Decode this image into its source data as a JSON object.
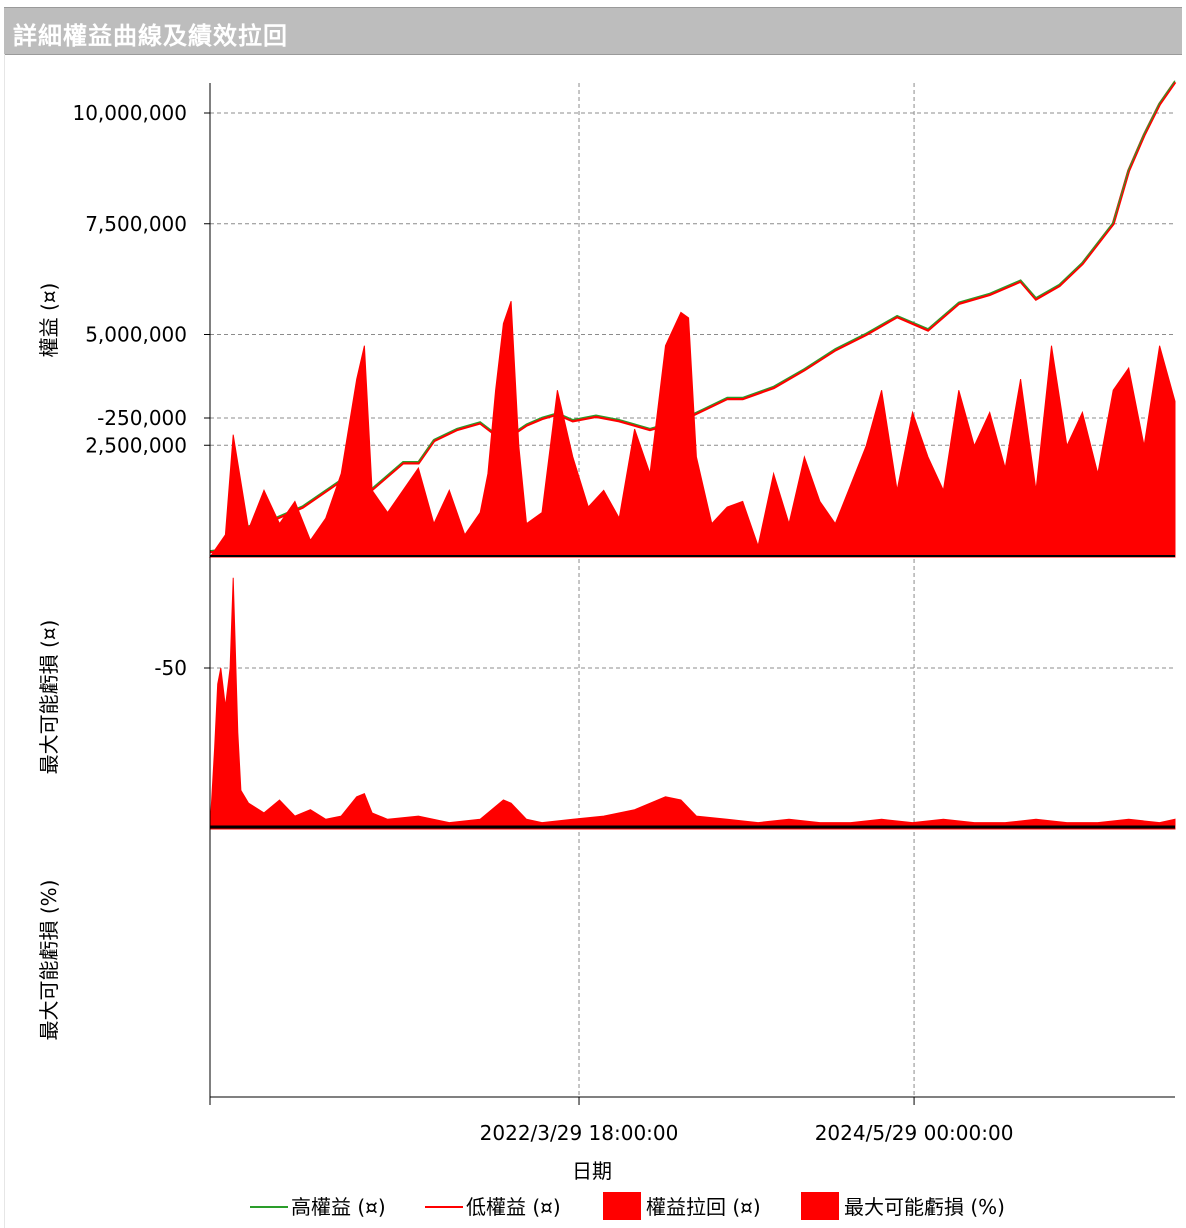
{
  "window": {
    "title": "詳細權益曲線及績效拉回"
  },
  "chart_data": {
    "type": "line",
    "xlabel": "日期",
    "x_ticks": [
      "2022/3/29 18:00:00",
      "2024/5/29 00:00:00"
    ],
    "x_range_years": [
      2019.85,
      2026.1
    ],
    "legend_placement": "bottom",
    "legend": [
      {
        "label": "高權益 (¤)",
        "type": "line",
        "color": "#2a9d2a"
      },
      {
        "label": "低權益 (¤)",
        "type": "line",
        "color": "#ff0000"
      },
      {
        "label": "權益拉回 (¤)",
        "type": "area",
        "color": "#ff0000"
      },
      {
        "label": "最大可能虧損 (%)",
        "type": "area",
        "color": "#ff0000"
      }
    ],
    "grid": true,
    "panels": [
      {
        "name": "equity",
        "ylabel": "權益 (¤)",
        "y_ticks": [
          "2,500,000",
          "5,000,000",
          "7,500,000",
          "10,000,000"
        ],
        "ylim": [
          0,
          10700000
        ],
        "series": [
          {
            "name": "低權益 (¤)",
            "color": "#ff0000",
            "x": [
              2019.85,
              2020.0,
              2020.1,
              2020.25,
              2020.45,
              2020.7,
              2020.9,
              2021.1,
              2021.2,
              2021.3,
              2021.45,
              2021.6,
              2021.75,
              2021.9,
              2022.0,
              2022.1,
              2022.2,
              2022.35,
              2022.5,
              2022.7,
              2022.9,
              2023.05,
              2023.2,
              2023.3,
              2023.5,
              2023.7,
              2023.9,
              2024.1,
              2024.3,
              2024.5,
              2024.7,
              2024.9,
              2025.1,
              2025.2,
              2025.35,
              2025.5,
              2025.7,
              2025.8,
              2025.9,
              2026.0,
              2026.1
            ],
            "values": [
              100000,
              150000,
              650000,
              800000,
              1100000,
              1700000,
              1500000,
              2100000,
              2100000,
              2600000,
              2850000,
              3000000,
              2600000,
              2950000,
              3100000,
              3200000,
              3050000,
              3150000,
              3050000,
              2850000,
              3050000,
              3300000,
              3550000,
              3550000,
              3800000,
              4200000,
              4650000,
              5000000,
              5400000,
              5100000,
              5700000,
              5900000,
              6200000,
              5800000,
              6100000,
              6600000,
              7500000,
              8700000,
              9500000,
              10200000,
              10700000
            ]
          },
          {
            "name": "高權益 (¤)",
            "color": "#2a9d2a",
            "x": [
              2019.85,
              2020.0,
              2020.1,
              2020.25,
              2020.45,
              2020.7,
              2020.9,
              2021.1,
              2021.2,
              2021.3,
              2021.45,
              2021.6,
              2021.75,
              2021.9,
              2022.0,
              2022.1,
              2022.2,
              2022.35,
              2022.5,
              2022.7,
              2022.9,
              2023.05,
              2023.2,
              2023.3,
              2023.5,
              2023.7,
              2023.9,
              2024.1,
              2024.3,
              2024.5,
              2024.7,
              2024.9,
              2025.1,
              2025.2,
              2025.35,
              2025.5,
              2025.7,
              2025.8,
              2025.9,
              2026.0,
              2026.1
            ],
            "values": [
              120000,
              170000,
              680000,
              830000,
              1130000,
              1730000,
              1530000,
              2130000,
              2130000,
              2630000,
              2880000,
              3030000,
              2630000,
              2980000,
              3130000,
              3230000,
              3080000,
              3180000,
              3080000,
              2880000,
              3080000,
              3330000,
              3580000,
              3580000,
              3830000,
              4230000,
              4680000,
              5030000,
              5430000,
              5130000,
              5730000,
              5930000,
              6230000,
              5830000,
              6130000,
              6630000,
              7530000,
              8730000,
              9530000,
              10230000,
              10730000
            ]
          }
        ]
      },
      {
        "name": "drawdown",
        "ylabel": "最大可能虧損 (¤)",
        "y_ticks": [
          "-250,000"
        ],
        "ylim": [
          -480000,
          0
        ],
        "series": [
          {
            "name": "權益拉回 (¤)",
            "color": "#ff0000",
            "x": [
              2019.85,
              2019.95,
              2020.0,
              2020.1,
              2020.2,
              2020.3,
              2020.4,
              2020.5,
              2020.6,
              2020.7,
              2020.8,
              2020.85,
              2020.9,
              2020.95,
              2021.0,
              2021.1,
              2021.2,
              2021.3,
              2021.4,
              2021.5,
              2021.6,
              2021.65,
              2021.7,
              2021.75,
              2021.8,
              2021.85,
              2021.9,
              2022.0,
              2022.1,
              2022.2,
              2022.3,
              2022.4,
              2022.5,
              2022.6,
              2022.7,
              2022.8,
              2022.9,
              2022.95,
              2023.0,
              2023.1,
              2023.2,
              2023.3,
              2023.4,
              2023.5,
              2023.6,
              2023.7,
              2023.8,
              2023.9,
              2024.0,
              2024.1,
              2024.2,
              2024.3,
              2024.4,
              2024.5,
              2024.6,
              2024.7,
              2024.8,
              2024.9,
              2025.0,
              2025.1,
              2025.2,
              2025.3,
              2025.4,
              2025.5,
              2025.6,
              2025.7,
              2025.8,
              2025.9,
              2026.0,
              2026.1
            ],
            "values": [
              0,
              -40000,
              -220000,
              -50000,
              -120000,
              -60000,
              -100000,
              -30000,
              -70000,
              -150000,
              -320000,
              -380000,
              -120000,
              -100000,
              -80000,
              -120000,
              -160000,
              -60000,
              -120000,
              -40000,
              -80000,
              -150000,
              -300000,
              -420000,
              -460000,
              -200000,
              -60000,
              -80000,
              -300000,
              -180000,
              -90000,
              -120000,
              -70000,
              -230000,
              -150000,
              -380000,
              -440000,
              -430000,
              -180000,
              -60000,
              -90000,
              -100000,
              -20000,
              -150000,
              -60000,
              -180000,
              -100000,
              -60000,
              -130000,
              -200000,
              -300000,
              -120000,
              -260000,
              -180000,
              -120000,
              -300000,
              -200000,
              -260000,
              -160000,
              -320000,
              -120000,
              -380000,
              -200000,
              -260000,
              -150000,
              -300000,
              -340000,
              -200000,
              -380000,
              -280000
            ]
          }
        ]
      },
      {
        "name": "drawdown-pct",
        "ylabel": "最大可能虧損 (%)",
        "y_ticks": [
          "-50"
        ],
        "ylim": [
          -80,
          0
        ],
        "series": [
          {
            "name": "最大可能虧損 (%)",
            "color": "#ff0000",
            "x": [
              2019.85,
              2019.88,
              2019.9,
              2019.92,
              2019.95,
              2019.98,
              2020.0,
              2020.03,
              2020.05,
              2020.1,
              2020.2,
              2020.3,
              2020.4,
              2020.5,
              2020.6,
              2020.7,
              2020.8,
              2020.85,
              2020.9,
              2021.0,
              2021.2,
              2021.4,
              2021.6,
              2021.75,
              2021.8,
              2021.9,
              2022.0,
              2022.2,
              2022.4,
              2022.6,
              2022.8,
              2022.9,
              2023.0,
              2023.2,
              2023.4,
              2023.6,
              2023.8,
              2024.0,
              2024.2,
              2024.4,
              2024.6,
              2024.8,
              2025.0,
              2025.2,
              2025.4,
              2025.6,
              2025.8,
              2026.0,
              2026.1
            ],
            "values": [
              0,
              -25,
              -45,
              -50,
              -38,
              -50,
              -78,
              -30,
              -12,
              -8,
              -5,
              -9,
              -4,
              -6,
              -3,
              -4,
              -10,
              -11,
              -5,
              -3,
              -4,
              -2,
              -3,
              -9,
              -8,
              -3,
              -2,
              -3,
              -4,
              -6,
              -10,
              -9,
              -4,
              -3,
              -2,
              -3,
              -2,
              -2,
              -3,
              -2,
              -3,
              -2,
              -2,
              -3,
              -2,
              -2,
              -3,
              -2,
              -3
            ]
          }
        ]
      }
    ]
  }
}
